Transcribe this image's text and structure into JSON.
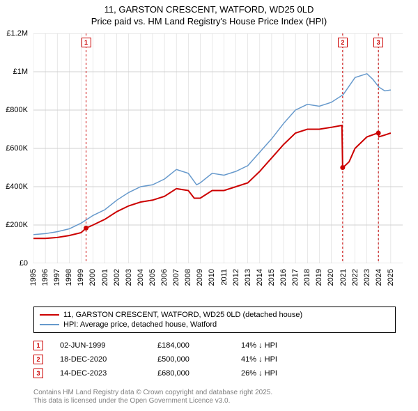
{
  "title_line1": "11, GARSTON CRESCENT, WATFORD, WD25 0LD",
  "title_line2": "Price paid vs. HM Land Registry's House Price Index (HPI)",
  "chart": {
    "type": "line",
    "xlim": [
      1995,
      2026
    ],
    "ylim": [
      0,
      1200000
    ],
    "ytick_step": 200000,
    "y_labels": [
      "£0",
      "£200K",
      "£400K",
      "£600K",
      "£800K",
      "£1M",
      "£1.2M"
    ],
    "x_ticks": [
      1995,
      1996,
      1997,
      1998,
      1999,
      2000,
      2001,
      2002,
      2003,
      2004,
      2005,
      2006,
      2007,
      2008,
      2009,
      2010,
      2011,
      2012,
      2013,
      2014,
      2015,
      2016,
      2017,
      2018,
      2019,
      2020,
      2021,
      2022,
      2023,
      2024,
      2025
    ],
    "background_color": "#ffffff",
    "grid_color": "#d0d0d0",
    "series": [
      {
        "name": "price_paid",
        "label": "11, GARSTON CRESCENT, WATFORD, WD25 0LD (detached house)",
        "color": "#cc0000",
        "line_width": 2,
        "data": [
          [
            1995,
            130000
          ],
          [
            1996,
            130000
          ],
          [
            1997,
            135000
          ],
          [
            1998,
            145000
          ],
          [
            1999,
            160000
          ],
          [
            1999.42,
            184000
          ],
          [
            2000,
            200000
          ],
          [
            2001,
            230000
          ],
          [
            2002,
            270000
          ],
          [
            2003,
            300000
          ],
          [
            2004,
            320000
          ],
          [
            2005,
            330000
          ],
          [
            2006,
            350000
          ],
          [
            2007,
            390000
          ],
          [
            2008,
            380000
          ],
          [
            2008.5,
            340000
          ],
          [
            2009,
            340000
          ],
          [
            2010,
            380000
          ],
          [
            2011,
            380000
          ],
          [
            2012,
            400000
          ],
          [
            2013,
            420000
          ],
          [
            2014,
            480000
          ],
          [
            2015,
            550000
          ],
          [
            2016,
            620000
          ],
          [
            2017,
            680000
          ],
          [
            2018,
            700000
          ],
          [
            2019,
            700000
          ],
          [
            2020,
            710000
          ],
          [
            2020.9,
            720000
          ],
          [
            2020.96,
            500000
          ],
          [
            2021,
            500000
          ],
          [
            2021.5,
            530000
          ],
          [
            2022,
            600000
          ],
          [
            2023,
            660000
          ],
          [
            2023.9,
            680000
          ],
          [
            2023.96,
            680000
          ],
          [
            2024,
            660000
          ],
          [
            2024.5,
            670000
          ],
          [
            2025,
            680000
          ]
        ]
      },
      {
        "name": "hpi",
        "label": "HPI: Average price, detached house, Watford",
        "color": "#6699cc",
        "line_width": 1.5,
        "data": [
          [
            1995,
            150000
          ],
          [
            1996,
            155000
          ],
          [
            1997,
            165000
          ],
          [
            1998,
            180000
          ],
          [
            1999,
            210000
          ],
          [
            2000,
            250000
          ],
          [
            2001,
            280000
          ],
          [
            2002,
            330000
          ],
          [
            2003,
            370000
          ],
          [
            2004,
            400000
          ],
          [
            2005,
            410000
          ],
          [
            2006,
            440000
          ],
          [
            2007,
            490000
          ],
          [
            2008,
            470000
          ],
          [
            2008.7,
            410000
          ],
          [
            2009,
            420000
          ],
          [
            2010,
            470000
          ],
          [
            2011,
            460000
          ],
          [
            2012,
            480000
          ],
          [
            2013,
            510000
          ],
          [
            2014,
            580000
          ],
          [
            2015,
            650000
          ],
          [
            2016,
            730000
          ],
          [
            2017,
            800000
          ],
          [
            2018,
            830000
          ],
          [
            2019,
            820000
          ],
          [
            2020,
            840000
          ],
          [
            2021,
            880000
          ],
          [
            2022,
            970000
          ],
          [
            2023,
            990000
          ],
          [
            2023.5,
            960000
          ],
          [
            2024,
            920000
          ],
          [
            2024.5,
            900000
          ],
          [
            2025,
            905000
          ]
        ]
      }
    ],
    "transaction_markers": [
      {
        "n": "1",
        "x": 1999.42,
        "y": 184000,
        "color": "#cc0000"
      },
      {
        "n": "2",
        "x": 2020.96,
        "y": 500000,
        "color": "#cc0000"
      },
      {
        "n": "3",
        "x": 2023.96,
        "y": 680000,
        "color": "#cc0000"
      }
    ],
    "marker_label_y_top": 64
  },
  "transactions": [
    {
      "n": "1",
      "date": "02-JUN-1999",
      "price": "£184,000",
      "diff": "14% ↓ HPI",
      "color": "#cc0000"
    },
    {
      "n": "2",
      "date": "18-DEC-2020",
      "price": "£500,000",
      "diff": "41% ↓ HPI",
      "color": "#cc0000"
    },
    {
      "n": "3",
      "date": "14-DEC-2023",
      "price": "£680,000",
      "diff": "26% ↓ HPI",
      "color": "#cc0000"
    }
  ],
  "footer_line1": "Contains HM Land Registry data © Crown copyright and database right 2025.",
  "footer_line2": "This data is licensed under the Open Government Licence v3.0."
}
